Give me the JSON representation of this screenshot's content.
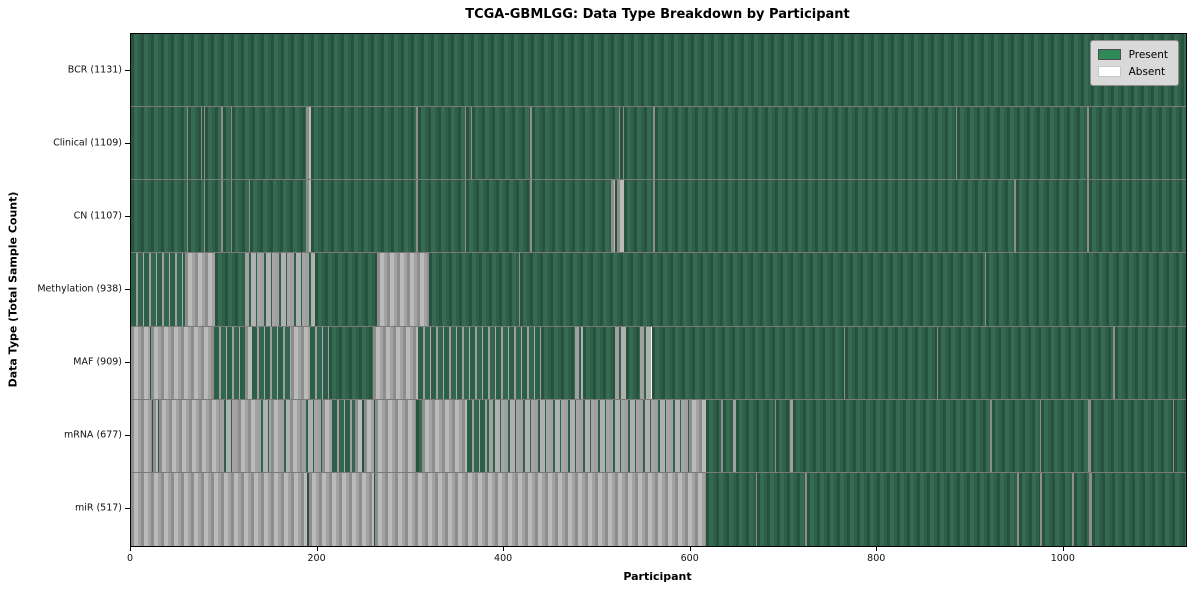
{
  "title": "TCGA-GBMLGG: Data Type Breakdown by Participant",
  "legend": {
    "position": "upper right",
    "items": [
      {
        "label": "Present",
        "color": "#2e8b57"
      },
      {
        "label": "Absent",
        "color": "#ffffff"
      }
    ]
  },
  "colors": {
    "present_green": "#2e8b57",
    "absent_white": "#ffffff",
    "absent_rendered_gray": "#a3a3a3",
    "bar_dark_green": "#2d5f4a",
    "plot_border": "#000000",
    "legend_bg": "#d9d9d9"
  },
  "chart_data": {
    "type": "heatmap",
    "title": "TCGA-GBMLGG: Data Type Breakdown by Participant",
    "xlabel": "Participant",
    "ylabel": "Data Type (Total Sample Count)",
    "x_ticks": [
      0,
      200,
      400,
      600,
      800,
      1000
    ],
    "x_max": 1131,
    "grid": false,
    "legend_entries": [
      "Present",
      "Absent"
    ],
    "legend_position": "upper right",
    "states_key": {
      "P": "present",
      "A": "absent",
      "MP": "mixed mostly present",
      "MA": "mixed mostly absent"
    },
    "rows": [
      {
        "label": "BCR (1131)",
        "total": 1131,
        "segments": [
          [
            0,
            1131,
            "P"
          ]
        ]
      },
      {
        "label": "Clinical (1109)",
        "total": 1109,
        "segments": [
          [
            0,
            60,
            "P"
          ],
          [
            60,
            61.5,
            "A"
          ],
          [
            61.5,
            75,
            "P"
          ],
          [
            75,
            76.5,
            "A"
          ],
          [
            76.5,
            78,
            "P"
          ],
          [
            78,
            79.5,
            "A"
          ],
          [
            79.5,
            97,
            "P"
          ],
          [
            97,
            98.5,
            "A"
          ],
          [
            98.5,
            107,
            "P"
          ],
          [
            107,
            108.5,
            "A"
          ],
          [
            108.5,
            188,
            "P"
          ],
          [
            188,
            193,
            "A"
          ],
          [
            193,
            306,
            "P"
          ],
          [
            306,
            307.5,
            "A"
          ],
          [
            307.5,
            358,
            "P"
          ],
          [
            358,
            359.5,
            "A"
          ],
          [
            359.5,
            364,
            "P"
          ],
          [
            364,
            366,
            "A"
          ],
          [
            366,
            428,
            "P"
          ],
          [
            428,
            429.5,
            "A"
          ],
          [
            429.5,
            523,
            "P"
          ],
          [
            523,
            524.5,
            "A"
          ],
          [
            524.5,
            527,
            "P"
          ],
          [
            527,
            528.5,
            "A"
          ],
          [
            528.5,
            560,
            "P"
          ],
          [
            560,
            561.5,
            "A"
          ],
          [
            561.5,
            884,
            "P"
          ],
          [
            884,
            885.5,
            "A"
          ],
          [
            885.5,
            1025,
            "P"
          ],
          [
            1025,
            1026.5,
            "A"
          ],
          [
            1026.5,
            1131,
            "P"
          ]
        ]
      },
      {
        "label": "CN (1107)",
        "total": 1107,
        "segments": [
          [
            0,
            60,
            "P"
          ],
          [
            60,
            61.5,
            "A"
          ],
          [
            61.5,
            78,
            "P"
          ],
          [
            78,
            79.5,
            "A"
          ],
          [
            79.5,
            97,
            "P"
          ],
          [
            97,
            98.5,
            "A"
          ],
          [
            98.5,
            107,
            "P"
          ],
          [
            107,
            108.5,
            "A"
          ],
          [
            108.5,
            126,
            "P"
          ],
          [
            126,
            127.5,
            "A"
          ],
          [
            127.5,
            188,
            "P"
          ],
          [
            188,
            193,
            "A"
          ],
          [
            193,
            306,
            "P"
          ],
          [
            306,
            307.5,
            "A"
          ],
          [
            307.5,
            358,
            "P"
          ],
          [
            358,
            359.5,
            "A"
          ],
          [
            359.5,
            428,
            "P"
          ],
          [
            428,
            429.5,
            "A"
          ],
          [
            429.5,
            515,
            "P"
          ],
          [
            515,
            519,
            "A"
          ],
          [
            519,
            521,
            "P"
          ],
          [
            521,
            528,
            "A"
          ],
          [
            528,
            560,
            "P"
          ],
          [
            560,
            561.5,
            "A"
          ],
          [
            561.5,
            947,
            "P"
          ],
          [
            947,
            948.5,
            "A"
          ],
          [
            948.5,
            1025,
            "P"
          ],
          [
            1025,
            1026.5,
            "A"
          ],
          [
            1026.5,
            1131,
            "P"
          ]
        ]
      },
      {
        "label": "Methylation (938)",
        "total": 938,
        "segments": [
          [
            0,
            58,
            "MP"
          ],
          [
            58,
            90,
            "A"
          ],
          [
            90,
            122,
            "P"
          ],
          [
            122,
            197,
            "MA"
          ],
          [
            197,
            264,
            "P"
          ],
          [
            264,
            320,
            "A"
          ],
          [
            320,
            416,
            "P"
          ],
          [
            416,
            417.5,
            "A"
          ],
          [
            417.5,
            915,
            "P"
          ],
          [
            915,
            916.5,
            "A"
          ],
          [
            916.5,
            1131,
            "P"
          ]
        ]
      },
      {
        "label": "MAF (909)",
        "total": 909,
        "segments": [
          [
            0,
            20,
            "A"
          ],
          [
            20,
            21.5,
            "P"
          ],
          [
            21.5,
            89,
            "A"
          ],
          [
            89,
            122,
            "MP"
          ],
          [
            122,
            130,
            "A"
          ],
          [
            130,
            172,
            "MP"
          ],
          [
            172,
            192,
            "A"
          ],
          [
            192,
            212,
            "MP"
          ],
          [
            212,
            259,
            "P"
          ],
          [
            259,
            308,
            "A"
          ],
          [
            308,
            440,
            "MP"
          ],
          [
            440,
            476,
            "P"
          ],
          [
            476,
            485,
            "MA"
          ],
          [
            485,
            519,
            "P"
          ],
          [
            519,
            531,
            "MA"
          ],
          [
            531,
            546,
            "P"
          ],
          [
            546,
            558,
            "MA"
          ],
          [
            558,
            764,
            "P"
          ],
          [
            764,
            765.5,
            "A"
          ],
          [
            765.5,
            864,
            "P"
          ],
          [
            864,
            865.5,
            "A"
          ],
          [
            865.5,
            1053,
            "P"
          ],
          [
            1053,
            1054.5,
            "A"
          ],
          [
            1054.5,
            1131,
            "P"
          ]
        ]
      },
      {
        "label": "mRNA (677)",
        "total": 677,
        "segments": [
          [
            0,
            22,
            "A"
          ],
          [
            22,
            23.5,
            "P"
          ],
          [
            23.5,
            29,
            "A"
          ],
          [
            29,
            30.5,
            "P"
          ],
          [
            30.5,
            95,
            "A"
          ],
          [
            95,
            115,
            "MA"
          ],
          [
            115,
            135,
            "A"
          ],
          [
            135,
            150,
            "MA"
          ],
          [
            150,
            160,
            "A"
          ],
          [
            160,
            170,
            "MA"
          ],
          [
            170,
            183,
            "A"
          ],
          [
            183,
            205,
            "MA"
          ],
          [
            205,
            215,
            "A"
          ],
          [
            215,
            240,
            "MP"
          ],
          [
            240,
            248,
            "A"
          ],
          [
            248,
            249.5,
            "P"
          ],
          [
            249.5,
            260,
            "A"
          ],
          [
            260,
            262,
            "P"
          ],
          [
            262,
            305,
            "A"
          ],
          [
            305,
            312,
            "P"
          ],
          [
            312,
            360,
            "A"
          ],
          [
            360,
            384,
            "MP"
          ],
          [
            384,
            598,
            "MA"
          ],
          [
            598,
            616,
            "A"
          ],
          [
            616,
            633,
            "P"
          ],
          [
            633,
            634.5,
            "A"
          ],
          [
            634.5,
            645,
            "P"
          ],
          [
            645,
            649,
            "MA"
          ],
          [
            649,
            690,
            "P"
          ],
          [
            690,
            691.5,
            "A"
          ],
          [
            691.5,
            707,
            "P"
          ],
          [
            707,
            710,
            "MA"
          ],
          [
            710,
            921,
            "P"
          ],
          [
            921,
            922.5,
            "A"
          ],
          [
            922.5,
            974,
            "P"
          ],
          [
            974,
            975.5,
            "A"
          ],
          [
            975.5,
            1026,
            "P"
          ],
          [
            1026,
            1029,
            "A"
          ],
          [
            1029,
            1117,
            "P"
          ],
          [
            1117,
            1118.5,
            "A"
          ],
          [
            1118.5,
            1131,
            "P"
          ]
        ]
      },
      {
        "label": "miR (517)",
        "total": 517,
        "segments": [
          [
            0,
            189,
            "A"
          ],
          [
            189,
            190.5,
            "P"
          ],
          [
            190.5,
            260,
            "A"
          ],
          [
            260,
            261.5,
            "P"
          ],
          [
            261.5,
            616,
            "A"
          ],
          [
            616,
            670,
            "P"
          ],
          [
            670,
            671.5,
            "A"
          ],
          [
            671.5,
            723,
            "P"
          ],
          [
            723,
            724.5,
            "A"
          ],
          [
            724.5,
            950,
            "P"
          ],
          [
            950,
            951.5,
            "A"
          ],
          [
            951.5,
            975,
            "P"
          ],
          [
            975,
            976.5,
            "A"
          ],
          [
            976.5,
            1009,
            "P"
          ],
          [
            1009,
            1010.5,
            "A"
          ],
          [
            1010.5,
            1027,
            "P"
          ],
          [
            1027,
            1030,
            "A"
          ],
          [
            1030,
            1131,
            "P"
          ]
        ]
      }
    ]
  }
}
